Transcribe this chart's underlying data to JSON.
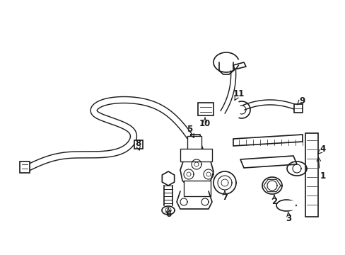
{
  "background_color": "#ffffff",
  "line_color": "#1a1a1a",
  "line_width": 1.2,
  "label_fontsize": 8.5,
  "fig_width": 4.89,
  "fig_height": 3.6
}
